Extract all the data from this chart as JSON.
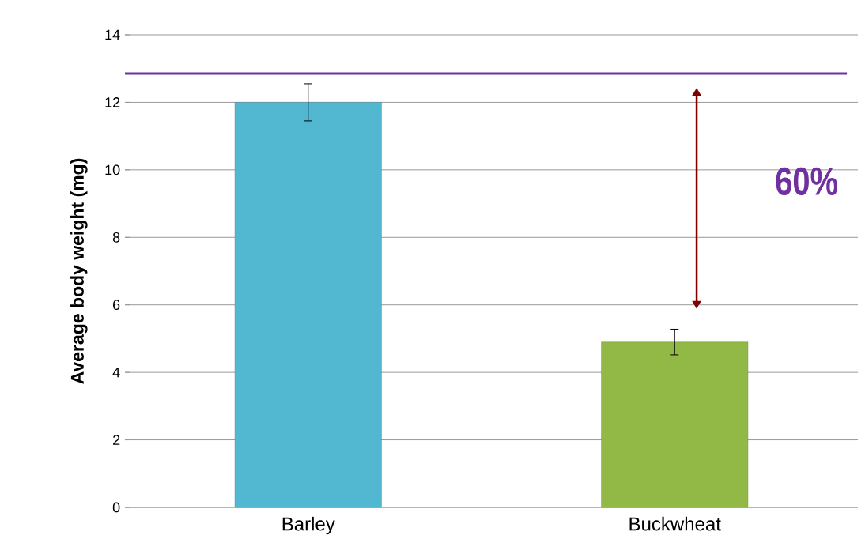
{
  "chart_data": {
    "type": "bar",
    "ylabel": "Average body weight (mg)",
    "categories": [
      "Barley",
      "Buckwheat"
    ],
    "values": [
      12.0,
      4.9
    ],
    "colors": [
      "#52b8d2",
      "#92b946"
    ],
    "errors": [
      0.55,
      0.38
    ],
    "ylim": [
      0,
      14
    ],
    "yticks": [
      0,
      2,
      4,
      6,
      8,
      10,
      12,
      14
    ],
    "grid": "y",
    "ref_lines": [
      {
        "axis": "y",
        "value": 12.85,
        "color": "#7030a0"
      }
    ],
    "annotations": [
      "60%"
    ]
  }
}
